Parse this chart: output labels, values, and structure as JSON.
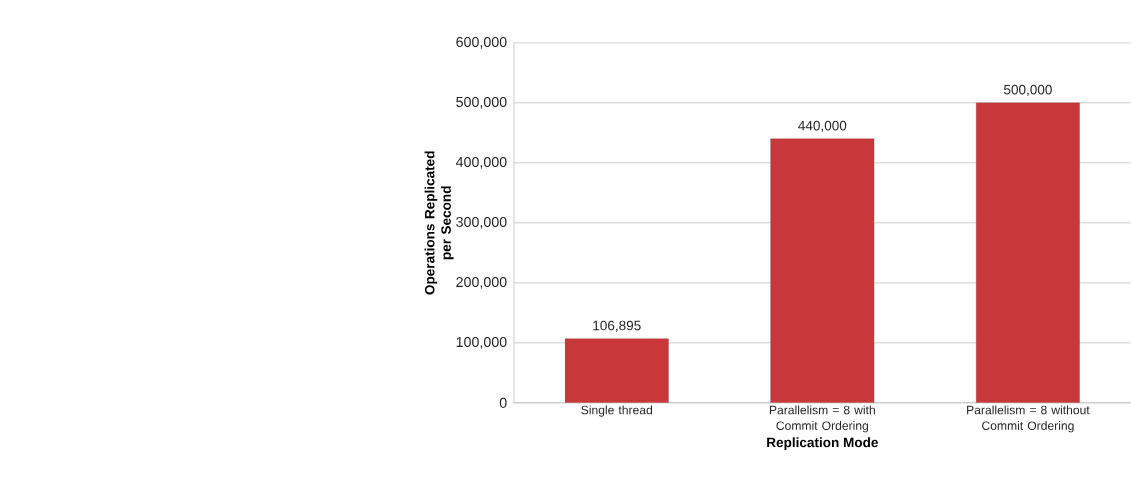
{
  "chart_data": {
    "type": "bar",
    "categories": [
      "Single thread",
      "Parallelism = 8 with Commit Ordering",
      "Parallelism = 8 without Commit Ordering"
    ],
    "values": [
      106895,
      440000,
      500000
    ],
    "value_labels": [
      "106,895",
      "440,000",
      "500,000"
    ],
    "color": "#c8383a",
    "xlabel": "Replication Mode",
    "ylabel": "Operations Replicated per Second",
    "ylim": [
      0,
      600000
    ],
    "yticks": [
      {
        "value": 0,
        "label": "0"
      },
      {
        "value": 100000,
        "label": "100,000"
      },
      {
        "value": 200000,
        "label": "200,000"
      },
      {
        "value": 300000,
        "label": "300,000"
      },
      {
        "value": 400000,
        "label": "400,000"
      },
      {
        "value": 500000,
        "label": "500,000"
      },
      {
        "value": 600000,
        "label": "600,000"
      }
    ],
    "grid": "y"
  }
}
